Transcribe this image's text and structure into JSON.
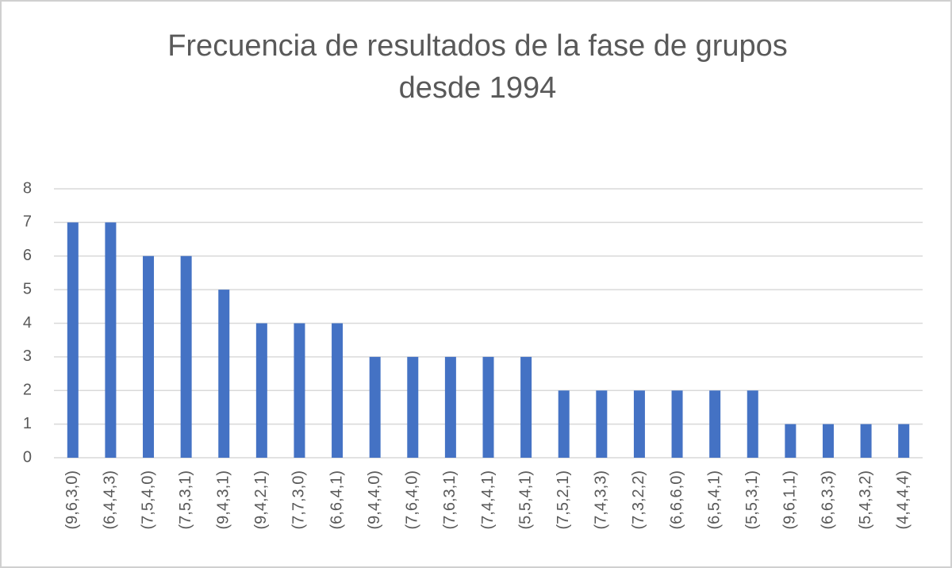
{
  "chart_data": {
    "type": "bar",
    "title": [
      "Frecuencia de resultados de la fase de grupos",
      "desde 1994"
    ],
    "categories": [
      "(9,6,3,0)",
      "(6,4,4,3)",
      "(7,5,4,0)",
      "(7,5,3,1)",
      "(9,4,3,1)",
      "(9,4,2,1)",
      "(7,7,3,0)",
      "(6,6,4,1)",
      "(9,4,4,0)",
      "(7,6,4,0)",
      "(7,6,3,1)",
      "(7,4,4,1)",
      "(5,5,4,1)",
      "(7,5,2,1)",
      "(7,4,3,3)",
      "(7,3,2,2)",
      "(6,6,6,0)",
      "(6,5,4,1)",
      "(5,5,3,1)",
      "(9,6,1,1)",
      "(6,6,3,3)",
      "(5,4,3,2)",
      "(4,4,4,4)"
    ],
    "values": [
      7,
      7,
      6,
      6,
      5,
      4,
      4,
      4,
      3,
      3,
      3,
      3,
      3,
      2,
      2,
      2,
      2,
      2,
      2,
      1,
      1,
      1,
      1
    ],
    "color": "#4472c4",
    "ylim": [
      0,
      8
    ],
    "yticks": [
      0,
      1,
      2,
      3,
      4,
      5,
      6,
      7,
      8
    ],
    "grid": true
  }
}
